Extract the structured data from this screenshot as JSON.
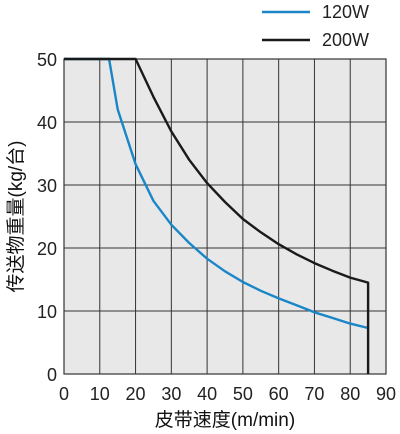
{
  "chart_data": {
    "type": "line",
    "title": "",
    "xlabel": "皮带速度(m/min)",
    "ylabel": "传送物重量(kg/台)",
    "xlim": [
      0,
      90
    ],
    "ylim": [
      0,
      50
    ],
    "x_ticks": [
      0,
      10,
      20,
      30,
      40,
      50,
      60,
      70,
      80,
      90
    ],
    "y_ticks": [
      0,
      10,
      20,
      30,
      40,
      50
    ],
    "grid": true,
    "legend_position": "top-right",
    "series": [
      {
        "name": "120W",
        "color": "#1a86c8",
        "points": [
          [
            0,
            50
          ],
          [
            12.6,
            50
          ],
          [
            15,
            42
          ],
          [
            20,
            33.3
          ],
          [
            25,
            27.5
          ],
          [
            30,
            23.7
          ],
          [
            35,
            20.8
          ],
          [
            40,
            18.3
          ],
          [
            45,
            16.3
          ],
          [
            50,
            14.6
          ],
          [
            55,
            13.2
          ],
          [
            60,
            12
          ],
          [
            65,
            10.9
          ],
          [
            70,
            9.8
          ],
          [
            75,
            8.9
          ],
          [
            80,
            8
          ],
          [
            85,
            7.3
          ]
        ]
      },
      {
        "name": "200W",
        "color": "#1a1a1a",
        "points": [
          [
            0,
            50
          ],
          [
            20,
            50
          ],
          [
            25,
            44
          ],
          [
            30,
            38.5
          ],
          [
            35,
            34
          ],
          [
            40,
            30.3
          ],
          [
            45,
            27.3
          ],
          [
            50,
            24.6
          ],
          [
            55,
            22.5
          ],
          [
            60,
            20.6
          ],
          [
            65,
            19
          ],
          [
            70,
            17.6
          ],
          [
            75,
            16.4
          ],
          [
            80,
            15.3
          ],
          [
            85,
            14.5
          ],
          [
            85,
            0
          ]
        ]
      }
    ]
  }
}
